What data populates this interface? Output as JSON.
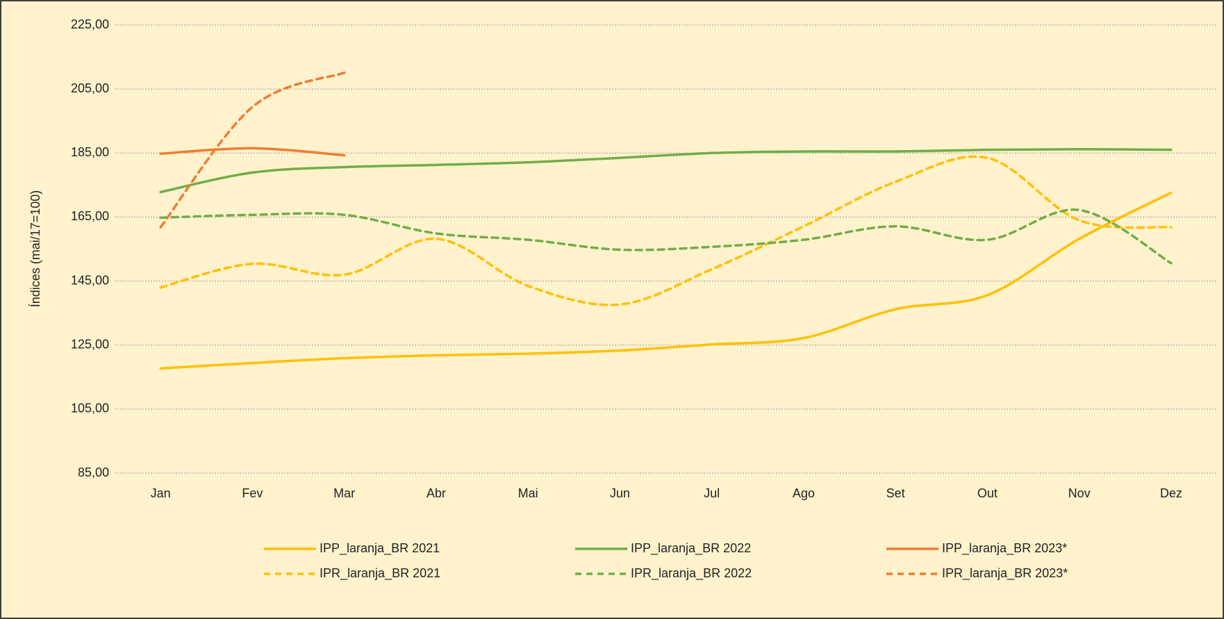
{
  "chart_data": {
    "type": "line",
    "ylabel": "Índices (mai/17=100)",
    "categories": [
      "Jan",
      "Fev",
      "Mar",
      "Abr",
      "Mai",
      "Jun",
      "Jul",
      "Ago",
      "Set",
      "Out",
      "Nov",
      "Dez"
    ],
    "series": [
      {
        "name": "IPP_laranja_BR 2021",
        "color": "#FFC000",
        "dashed": false,
        "values": [
          117.7,
          119.4,
          120.9,
          121.8,
          122.3,
          123.3,
          125.2,
          127.2,
          136.2,
          140.6,
          158.2,
          172.6
        ]
      },
      {
        "name": "IPP_laranja_BR 2022",
        "color": "#70AD47",
        "dashed": false,
        "values": [
          172.8,
          178.9,
          180.6,
          181.3,
          182.1,
          183.5,
          185.0,
          185.5,
          185.5,
          186.0,
          186.2,
          186.0
        ]
      },
      {
        "name": "IPP_laranja_BR 2023*",
        "color": "#ED7D31",
        "dashed": false,
        "values": [
          184.8,
          186.5,
          184.3,
          null,
          null,
          null,
          null,
          null,
          null,
          null,
          null,
          null
        ]
      },
      {
        "name": "IPR_laranja_BR 2021",
        "color": "#FFC000",
        "dashed": true,
        "values": [
          143.0,
          150.4,
          147.0,
          158.2,
          143.5,
          137.7,
          148.7,
          162.1,
          176.0,
          183.5,
          164.0,
          161.8
        ]
      },
      {
        "name": "IPR_laranja_BR 2022",
        "color": "#70AD47",
        "dashed": true,
        "values": [
          164.8,
          165.7,
          165.7,
          159.9,
          157.9,
          154.8,
          155.7,
          157.9,
          162.1,
          157.9,
          167.2,
          150.6
        ]
      },
      {
        "name": "IPR_laranja_BR 2023*",
        "color": "#ED7D31",
        "dashed": true,
        "values": [
          161.8,
          199.4,
          210.1,
          null,
          null,
          null,
          null,
          null,
          null,
          null,
          null,
          null
        ]
      }
    ],
    "ylim": [
      85,
      225
    ],
    "yticks": [
      {
        "value": 85,
        "label": "85,00"
      },
      {
        "value": 105,
        "label": "105,00"
      },
      {
        "value": 125,
        "label": "125,00"
      },
      {
        "value": 145,
        "label": "145,00"
      },
      {
        "value": 165,
        "label": "165,00"
      },
      {
        "value": 185,
        "label": "185,00"
      },
      {
        "value": 205,
        "label": "205,00"
      },
      {
        "value": 225,
        "label": "225,00"
      }
    ],
    "grid": true,
    "legend": "bottom"
  }
}
